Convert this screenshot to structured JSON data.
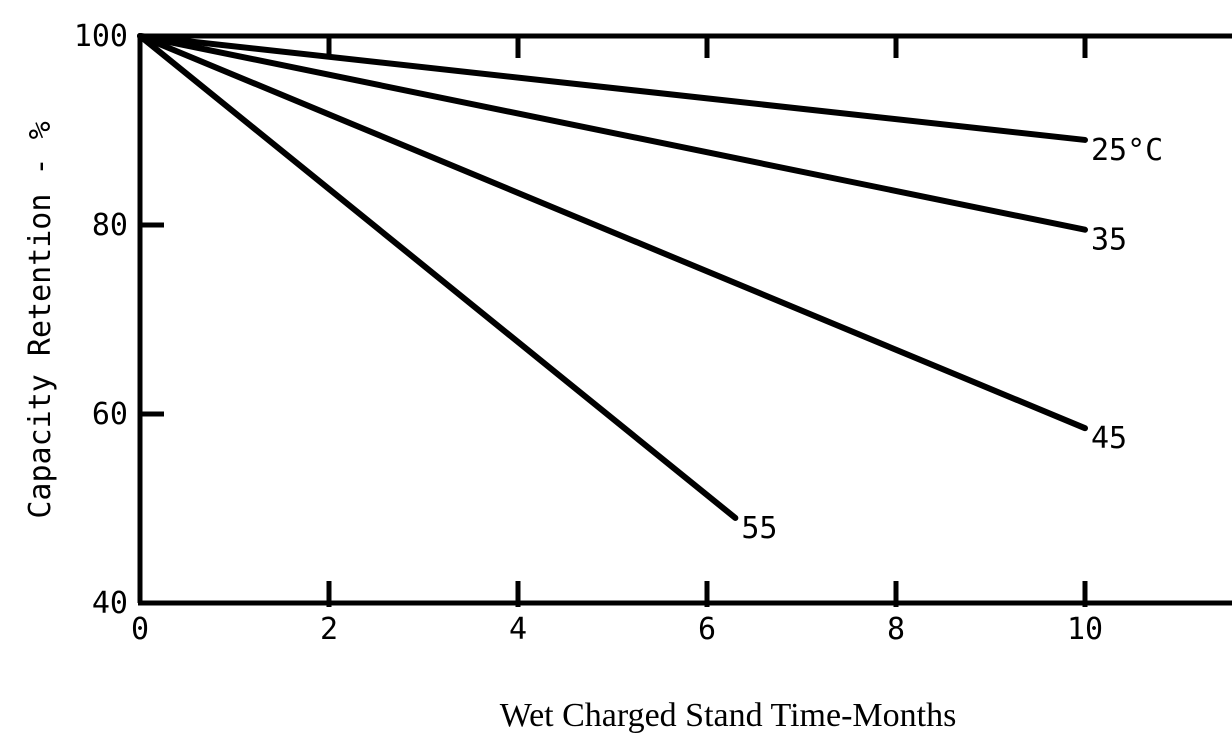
{
  "chart_data": {
    "type": "line",
    "title": "",
    "xlabel": "Wet Charged Stand Time-Months",
    "ylabel": "Capacity Retention - %",
    "xlim": [
      0,
      12
    ],
    "ylim": [
      40,
      100
    ],
    "x_ticks": [
      0,
      2,
      4,
      6,
      8,
      10
    ],
    "x_tick_labels": [
      "0",
      "2",
      "4",
      "6",
      "8",
      "10"
    ],
    "y_ticks": [
      40,
      60,
      80,
      100
    ],
    "y_tick_labels": [
      "40",
      "60",
      "80",
      "100"
    ],
    "top_ticks": [
      2,
      4,
      6,
      8,
      10
    ],
    "grid": false,
    "legend": "none",
    "series": [
      {
        "name": "25°C",
        "x": [
          0,
          10
        ],
        "y": [
          100,
          89
        ]
      },
      {
        "name": "35",
        "x": [
          0,
          10
        ],
        "y": [
          100,
          79.5
        ]
      },
      {
        "name": "45",
        "x": [
          0,
          10
        ],
        "y": [
          100,
          58.5
        ]
      },
      {
        "name": "55",
        "x": [
          0,
          6.3
        ],
        "y": [
          100,
          49
        ]
      }
    ]
  }
}
